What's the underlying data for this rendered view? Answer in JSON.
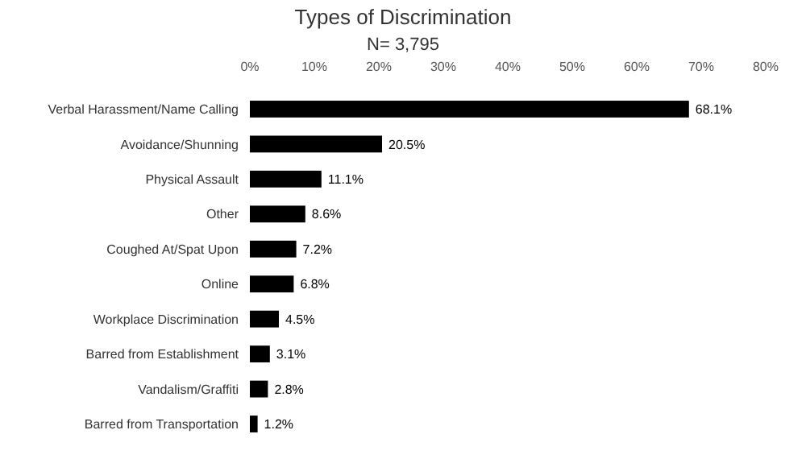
{
  "chart_data": {
    "type": "bar",
    "orientation": "horizontal",
    "title": "Types of Discrimination",
    "subtitle": "N= 3,795",
    "categories": [
      "Verbal Harassment/Name Calling",
      "Avoidance/Shunning",
      "Physical Assault",
      "Other",
      "Coughed At/Spat Upon",
      "Online",
      "Workplace Discrimination",
      "Barred from Establishment",
      "Vandalism/Graffiti",
      "Barred from Transportation"
    ],
    "values": [
      68.1,
      20.5,
      11.1,
      8.6,
      7.2,
      6.8,
      4.5,
      3.1,
      2.8,
      1.2
    ],
    "value_labels": [
      "68.1%",
      "20.5%",
      "11.1%",
      "8.6%",
      "7.2%",
      "6.8%",
      "4.5%",
      "3.1%",
      "2.8%",
      "1.2%"
    ],
    "color": "#000000",
    "xlim": [
      0,
      80
    ],
    "xticks": [
      {
        "value": 0,
        "label": "0%"
      },
      {
        "value": 10,
        "label": "10%"
      },
      {
        "value": 20,
        "label": "20%"
      },
      {
        "value": 30,
        "label": "30%"
      },
      {
        "value": 40,
        "label": "40%"
      },
      {
        "value": 50,
        "label": "50%"
      },
      {
        "value": 60,
        "label": "60%"
      },
      {
        "value": 70,
        "label": "70%"
      },
      {
        "value": 80,
        "label": "80%"
      }
    ],
    "grid": false
  }
}
